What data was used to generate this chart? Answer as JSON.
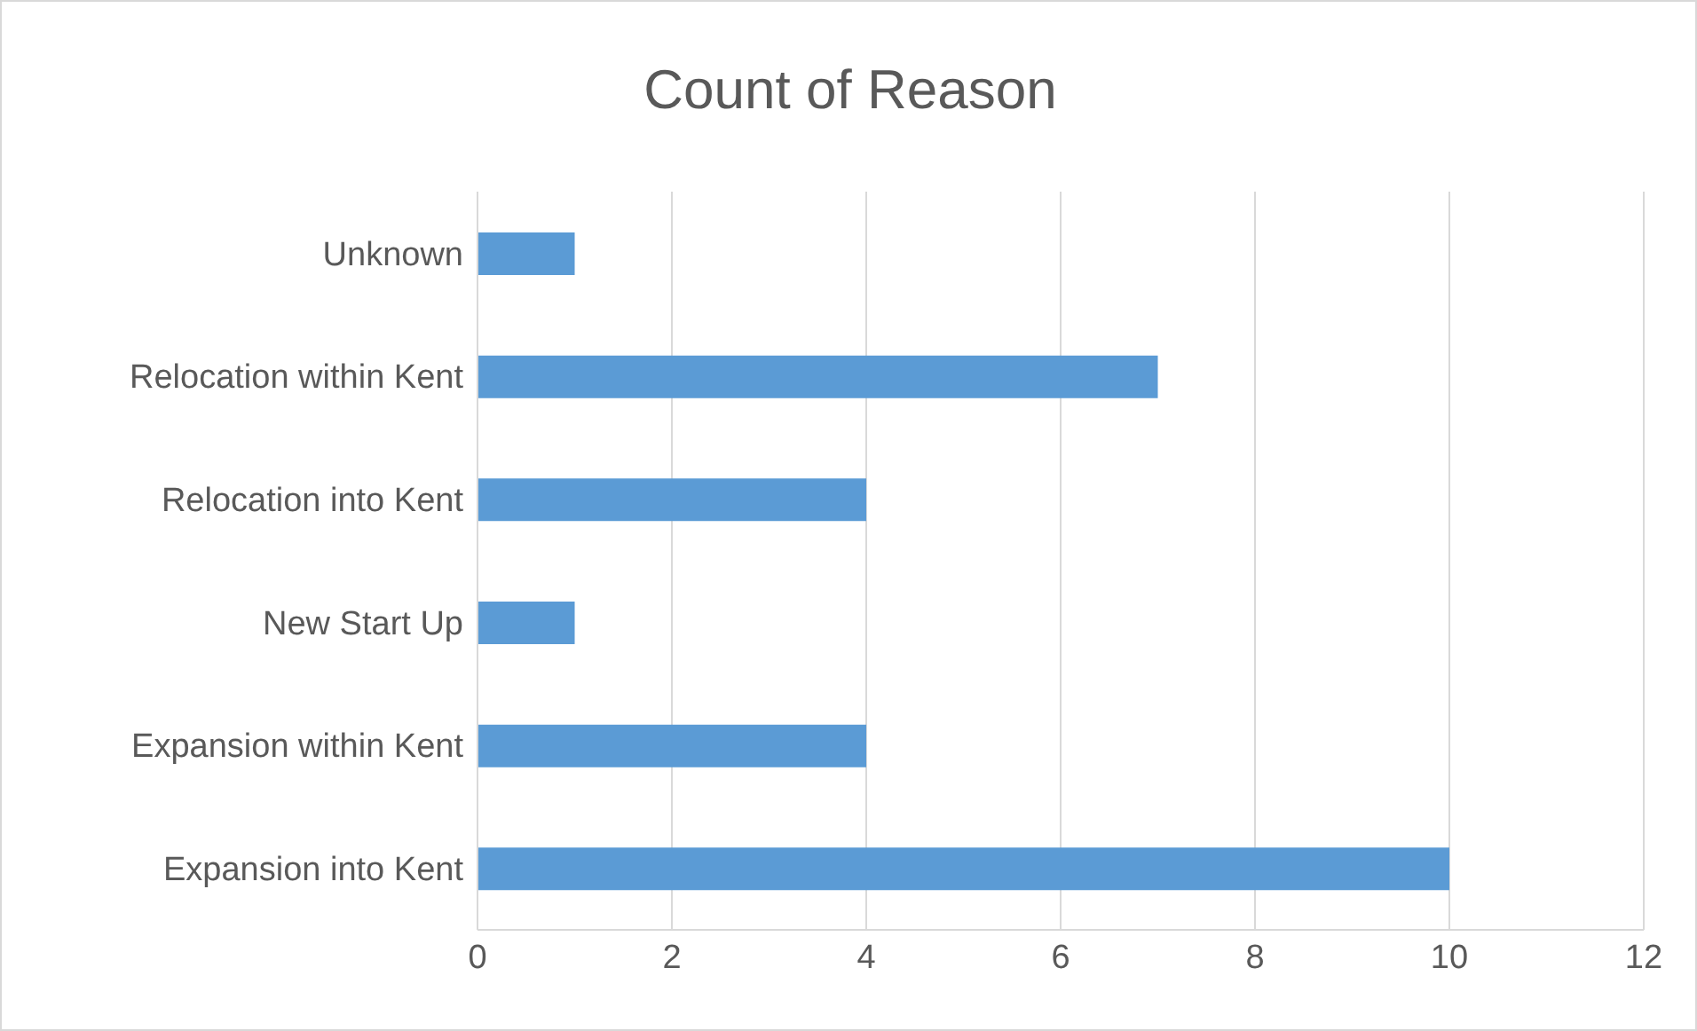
{
  "chart_data": {
    "type": "bar",
    "orientation": "horizontal",
    "title": "Count of Reason",
    "categories": [
      "Unknown",
      "Relocation within Kent",
      "Relocation into Kent",
      "New Start Up",
      "Expansion within Kent",
      "Expansion into Kent"
    ],
    "values": [
      1,
      7,
      4,
      1,
      4,
      10
    ],
    "color": "#5b9bd5",
    "xlim": [
      0,
      12
    ],
    "xticks": [
      0,
      2,
      4,
      6,
      8,
      10,
      12
    ],
    "grid": "x",
    "legend": false
  }
}
